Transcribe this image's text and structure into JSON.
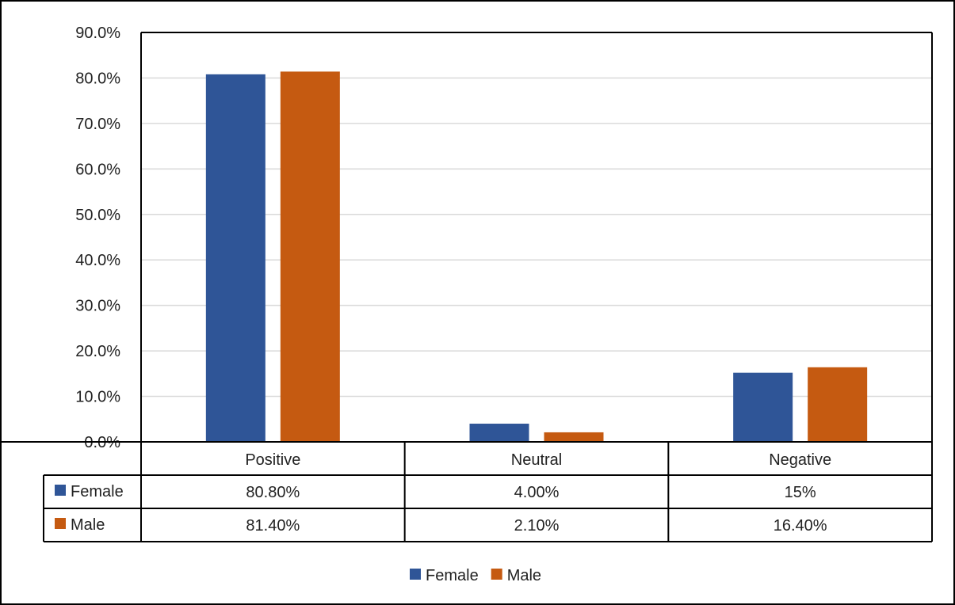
{
  "chart_data": {
    "type": "bar",
    "categories": [
      "Positive",
      "Neutral",
      "Negative"
    ],
    "series": [
      {
        "name": "Female",
        "values": [
          80.8,
          4.0,
          15.2
        ],
        "table_labels": [
          "80.80%",
          "4.00%",
          "15%"
        ],
        "color": "#2f5597"
      },
      {
        "name": "Male",
        "values": [
          81.4,
          2.1,
          16.4
        ],
        "table_labels": [
          "81.40%",
          "2.10%",
          "16.40%"
        ],
        "color": "#c55a11"
      }
    ],
    "ylim": [
      0,
      90
    ],
    "yticks": [
      "0.0%",
      "10.0%",
      "20.0%",
      "30.0%",
      "40.0%",
      "50.0%",
      "60.0%",
      "70.0%",
      "80.0%",
      "90.0%"
    ],
    "grid": true,
    "data_table": true,
    "legend_position": "bottom"
  }
}
